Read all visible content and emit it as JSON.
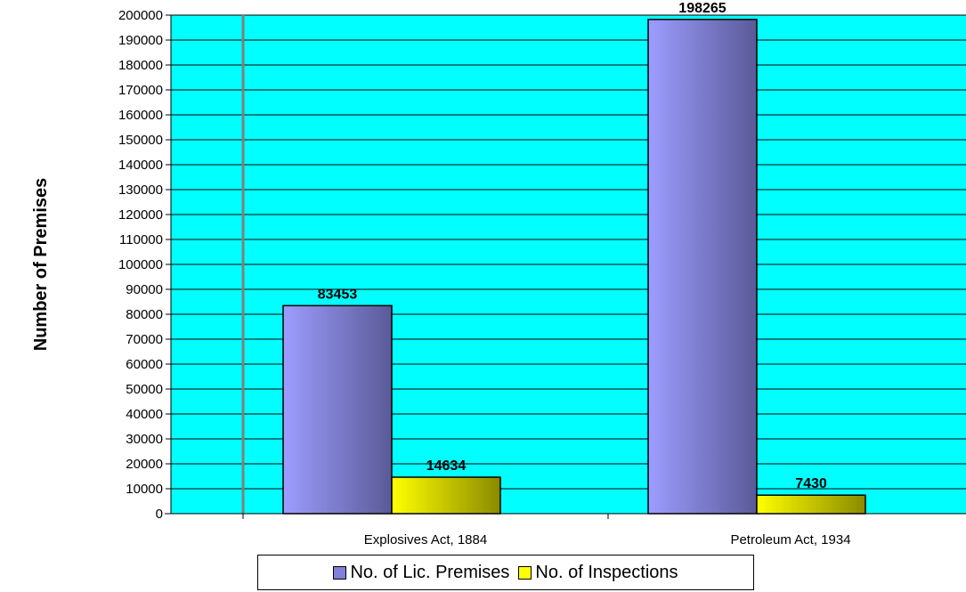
{
  "chart_data": {
    "type": "bar",
    "categories": [
      "Explosives Act, 1884",
      "Petroleum Act, 1934"
    ],
    "series": [
      {
        "name": "No. of Lic. Premises",
        "values": [
          83453,
          198265
        ],
        "color": "#8080d8"
      },
      {
        "name": "No. of Inspections",
        "values": [
          14634,
          7430
        ],
        "color": "#ffff00"
      }
    ],
    "title": "",
    "xlabel": "",
    "ylabel": "Number of Premises",
    "ylim": [
      0,
      200000
    ],
    "ytick_step": 10000,
    "grid": true,
    "legend_position": "bottom",
    "plot_background": "#00ffff"
  }
}
